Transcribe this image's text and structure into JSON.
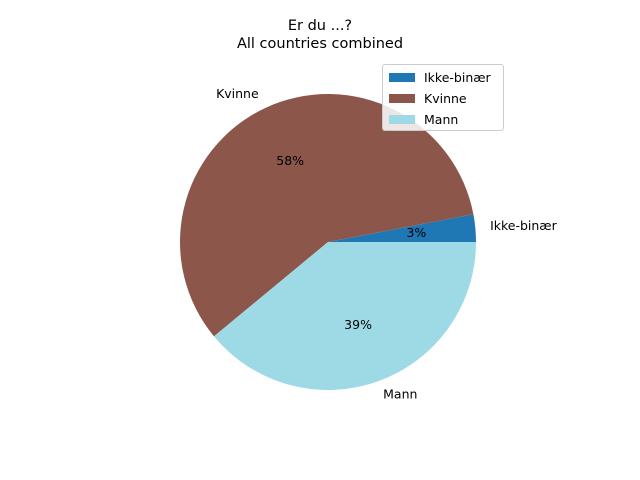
{
  "chart_data": {
    "type": "pie",
    "title": "Er du ...?",
    "subtitle": "All countries combined",
    "slices": [
      {
        "label": "Ikke-binær",
        "value": 3,
        "pct_label": "3%",
        "color": "#1f77b4"
      },
      {
        "label": "Kvinne",
        "value": 58,
        "pct_label": "58%",
        "color": "#8c564b"
      },
      {
        "label": "Mann",
        "value": 39,
        "pct_label": "39%",
        "color": "#9edae5"
      }
    ],
    "legend": {
      "placement": "top-right",
      "entries": [
        "Ikke-binær",
        "Kvinne",
        "Mann"
      ]
    }
  }
}
